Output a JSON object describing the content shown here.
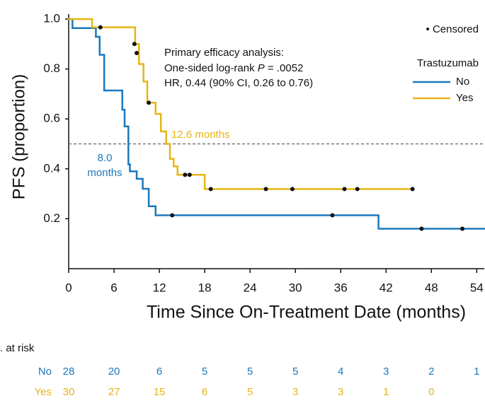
{
  "chart_data": {
    "type": "km",
    "xlabel": "Time Since On-Treatment Date (months)",
    "ylabel": "PFS (proportion)",
    "xlim": [
      0,
      55
    ],
    "ylim": [
      0,
      1
    ],
    "xticks": [
      0,
      6,
      12,
      18,
      24,
      30,
      36,
      42,
      48,
      54
    ],
    "yticks": [
      0.2,
      0.4,
      0.6,
      0.8,
      {
        "value": 1,
        "label": "1.0"
      }
    ],
    "censor_label": "• Censored",
    "legend_title": "Trastuzumab",
    "median_line": 0.5,
    "annotations": {
      "line1": "Primary efficacy analysis:",
      "line2a": "One-sided log-rank ",
      "line2b": "P",
      "line2c": " = .0052",
      "line3": "HR, 0.44 (90% CI, 0.26 to 0.76)"
    },
    "median_labels": {
      "yes": "12.6 months",
      "no_top": "8.0",
      "no_bottom": "months"
    },
    "series": [
      {
        "name": "No",
        "color": "#1b78bd",
        "x": [
          0,
          0.5,
          3.6,
          4.1,
          4.7,
          7.1,
          7.4,
          7.9,
          8.1,
          9.0,
          9.8,
          10.6,
          11.5,
          41.0,
          55
        ],
        "values": [
          1.0,
          0.964,
          0.929,
          0.857,
          0.714,
          0.637,
          0.57,
          0.418,
          0.39,
          0.36,
          0.32,
          0.25,
          0.214,
          0.16,
          0.16
        ],
        "censored_x": [
          13.7,
          34.9,
          46.7,
          52.1
        ],
        "censored_values": [
          0.214,
          0.214,
          0.16,
          0.16
        ]
      },
      {
        "name": "Yes",
        "color": "#e6b415",
        "x": [
          0,
          3.1,
          8.8,
          9.3,
          9.9,
          10.4,
          11.5,
          12.2,
          12.9,
          13.4,
          13.9,
          14.4,
          18.0,
          45.5
        ],
        "values": [
          1.0,
          0.967,
          0.9,
          0.82,
          0.75,
          0.665,
          0.62,
          0.55,
          0.5,
          0.44,
          0.41,
          0.376,
          0.319,
          0.319
        ],
        "censored_x": [
          4.2,
          8.7,
          9.0,
          10.6,
          15.4,
          16.0,
          18.8,
          26.1,
          29.6,
          36.5,
          38.2,
          45.5
        ],
        "censored_values": [
          0.967,
          0.9,
          0.864,
          0.665,
          0.376,
          0.376,
          0.319,
          0.319,
          0.319,
          0.319,
          0.319,
          0.319
        ]
      }
    ],
    "at_risk": {
      "title": ". at risk",
      "rows": [
        {
          "name": "No",
          "color": "#1b78bd",
          "values": [
            28,
            20,
            6,
            5,
            5,
            5,
            4,
            3,
            2,
            1
          ]
        },
        {
          "name": "Yes",
          "color": "#e6b415",
          "values": [
            30,
            27,
            15,
            6,
            5,
            3,
            3,
            1,
            0
          ]
        }
      ]
    }
  }
}
